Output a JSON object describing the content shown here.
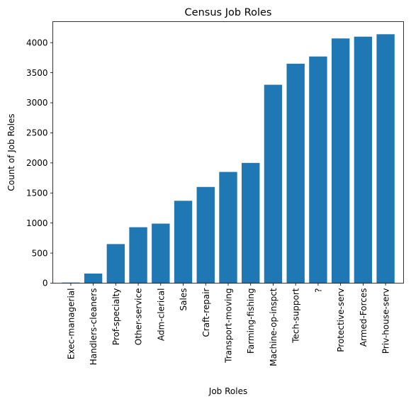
{
  "chart_data": {
    "type": "bar",
    "title": "Census Job Roles",
    "xlabel": "Job Roles",
    "ylabel": "Count of Job Roles",
    "categories": [
      "Exec-managerial",
      "Handlers-cleaners",
      "Prof-specialty",
      "Other-service",
      "Adm-clerical",
      "Sales",
      "Craft-repair",
      "Transport-moving",
      "Farming-fishing",
      "Machine-op-inspct",
      "Tech-support",
      "?",
      "Protective-serv",
      "Armed-Forces",
      "Priv-house-serv"
    ],
    "values": [
      10,
      160,
      650,
      930,
      990,
      1370,
      1600,
      1850,
      2000,
      3300,
      3650,
      3770,
      4070,
      4100,
      4140
    ],
    "ylim": [
      0,
      4350
    ],
    "yticks": [
      0,
      500,
      1000,
      1500,
      2000,
      2500,
      3000,
      3500,
      4000
    ],
    "bar_color": "#1f77b4",
    "grid": false,
    "legend": "none"
  }
}
